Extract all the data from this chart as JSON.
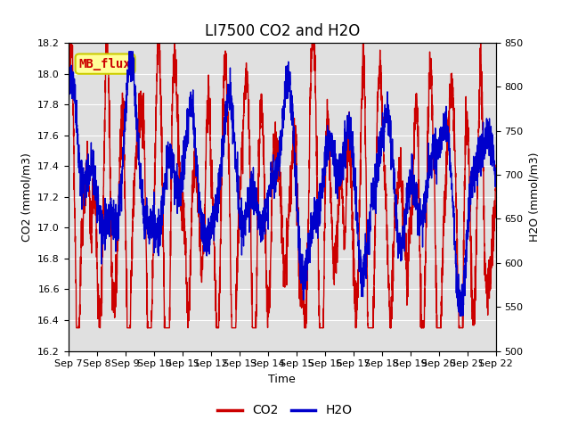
{
  "title": "LI7500 CO2 and H2O",
  "xlabel": "Time",
  "ylabel_left": "CO2 (mmol/m3)",
  "ylabel_right": "H2O (mmol/m3)",
  "co2_ylim": [
    16.2,
    18.2
  ],
  "h2o_ylim": [
    500,
    850
  ],
  "co2_yticks": [
    16.2,
    16.4,
    16.6,
    16.8,
    17.0,
    17.2,
    17.4,
    17.6,
    17.8,
    18.0,
    18.2
  ],
  "h2o_yticks": [
    500,
    550,
    600,
    650,
    700,
    750,
    800,
    850
  ],
  "xtick_labels": [
    "Sep 7",
    "Sep 8",
    "Sep 9",
    "Sep 10",
    "Sep 11",
    "Sep 12",
    "Sep 13",
    "Sep 14",
    "Sep 15",
    "Sep 16",
    "Sep 17",
    "Sep 18",
    "Sep 19",
    "Sep 20",
    "Sep 21",
    "Sep 22"
  ],
  "co2_color": "#cc0000",
  "h2o_color": "#0000cc",
  "plot_bg_color": "#e0e0e0",
  "fig_bg_color": "#ffffff",
  "legend_label_co2": "CO2",
  "legend_label_h2o": "H2O",
  "annotation_text": "MB_flux",
  "annotation_bg": "#ffff99",
  "annotation_border": "#cccc00",
  "title_fontsize": 12,
  "axis_fontsize": 9,
  "tick_fontsize": 8,
  "legend_fontsize": 10,
  "line_width": 1.0,
  "num_points": 3000
}
